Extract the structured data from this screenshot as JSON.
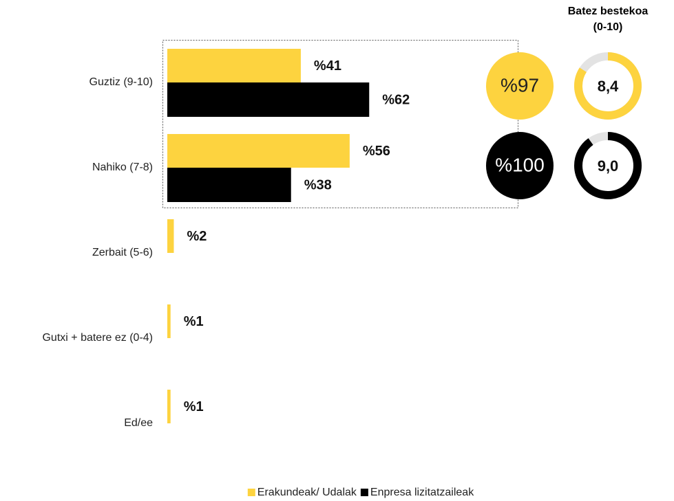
{
  "chart_data": {
    "type": "bar",
    "orientation": "horizontal",
    "categories": [
      "Guztiz (9-10)",
      "Nahiko (7-8)",
      "Zerbait (5-6)",
      "Gutxi + batere ez (0-4)",
      "Ed/ee"
    ],
    "xlim": [
      0,
      100
    ],
    "series": [
      {
        "name": "Erakundeak/ Udalak",
        "color": "#fdd33f",
        "values": [
          41,
          56,
          2,
          1,
          1
        ],
        "value_labels": [
          "%41",
          "%56",
          "%2",
          "%1",
          "%1"
        ]
      },
      {
        "name": "Enpresa lizitatzaileak",
        "color": "#000000",
        "values": [
          62,
          38,
          null,
          null,
          null
        ],
        "value_labels": [
          "%62",
          "%38",
          null,
          null,
          null
        ]
      }
    ],
    "totals": {
      "values": [
        97,
        100
      ],
      "value_labels": [
        "%97",
        "%100"
      ]
    },
    "average": {
      "title": [
        "Batez bestekoa",
        "(0-10)"
      ],
      "lim": [
        0,
        10
      ],
      "values": [
        8.4,
        9.0
      ],
      "value_labels": [
        "8,4",
        "9,0"
      ]
    }
  }
}
